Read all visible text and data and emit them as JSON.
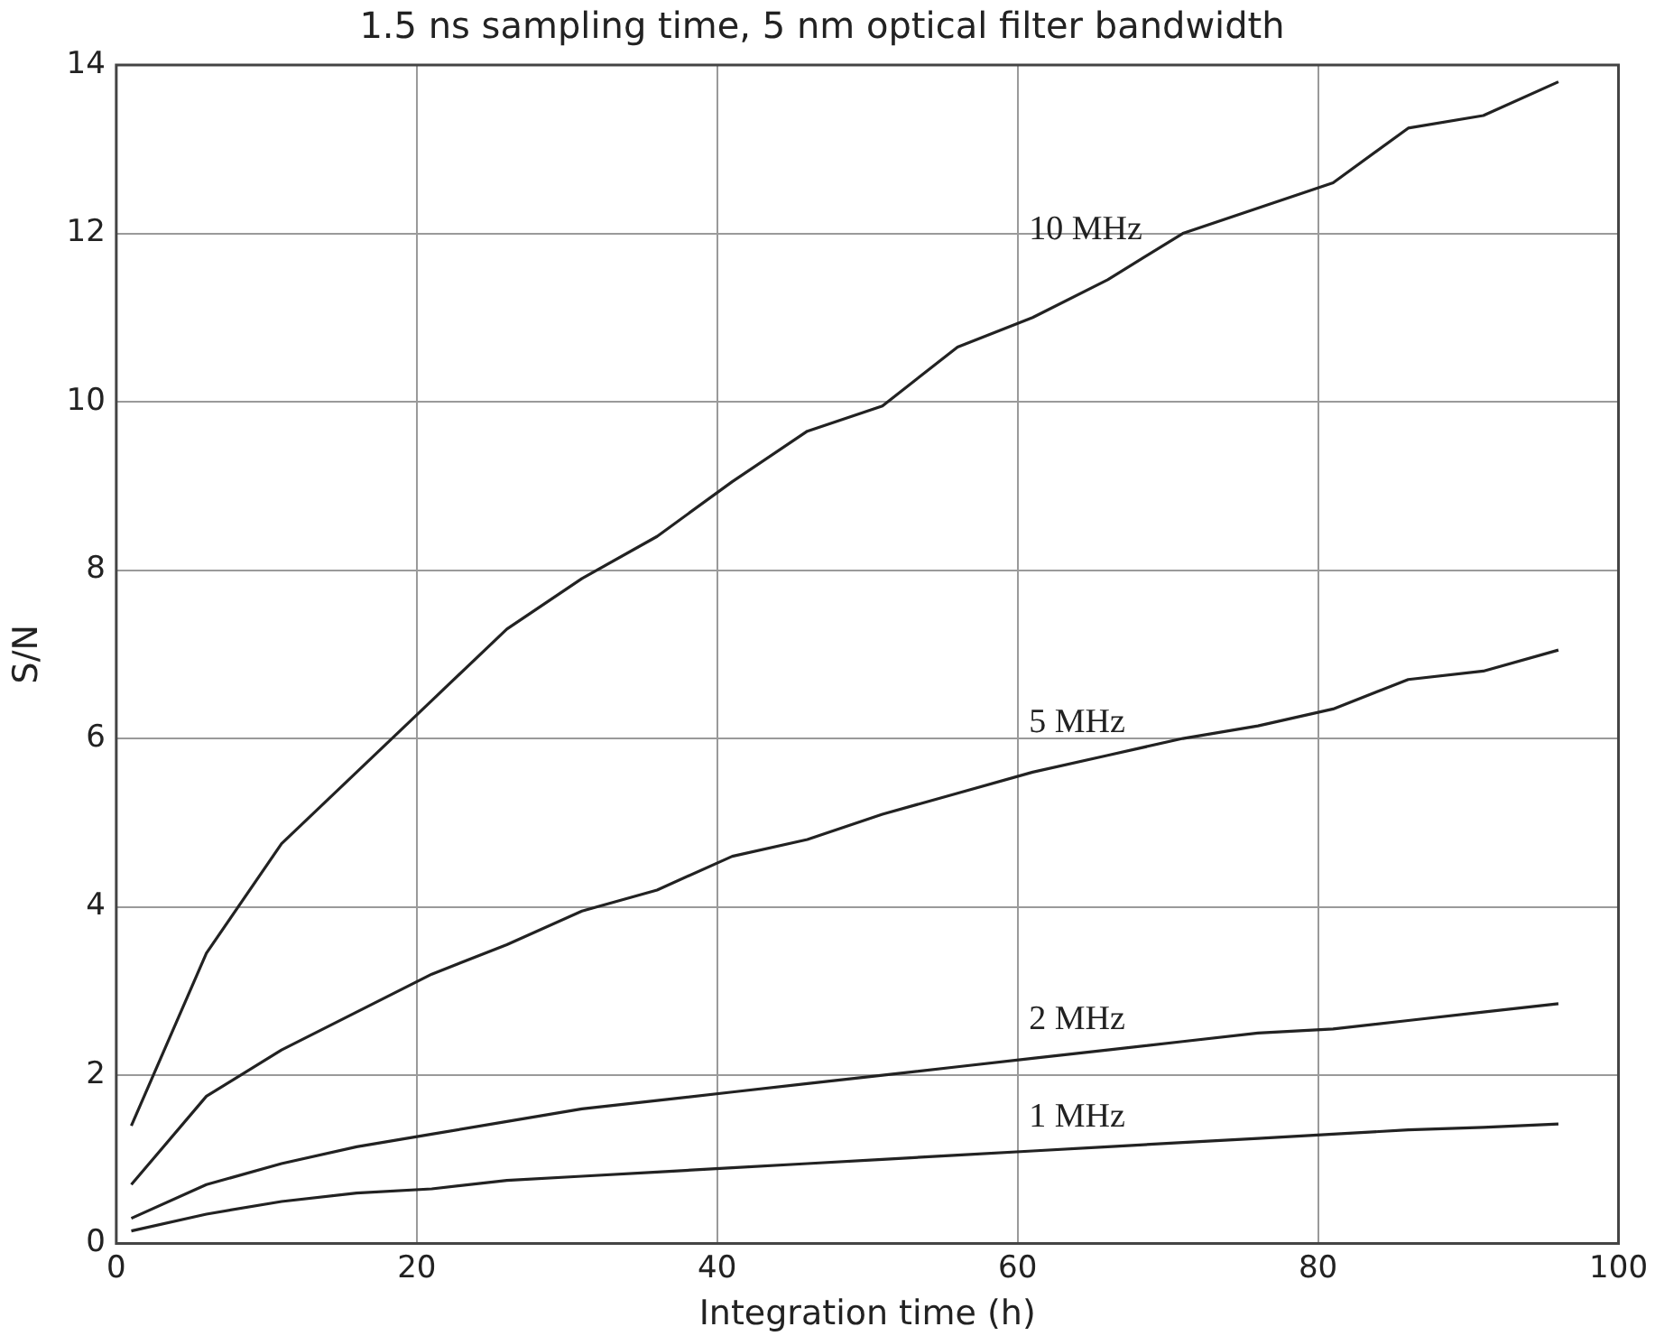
{
  "chart_data": {
    "type": "line",
    "title": "1.5 ns sampling time, 5 nm optical filter bandwidth",
    "xlabel": "Integration time (h)",
    "ylabel": "S/N",
    "x": [
      1,
      6,
      11,
      16,
      21,
      26,
      31,
      36,
      41,
      46,
      51,
      56,
      61,
      66,
      71,
      76,
      81,
      86,
      91,
      96
    ],
    "series": [
      {
        "name": "10 MHz",
        "color": "#222222",
        "values": [
          1.4,
          3.45,
          4.75,
          5.6,
          6.45,
          7.3,
          7.9,
          8.4,
          9.05,
          9.65,
          9.95,
          10.65,
          11.0,
          11.45,
          12.0,
          12.3,
          12.6,
          13.25,
          13.4,
          13.8
        ]
      },
      {
        "name": "5 MHz",
        "color": "#222222",
        "values": [
          0.7,
          1.75,
          2.3,
          2.75,
          3.2,
          3.55,
          3.95,
          4.2,
          4.6,
          4.8,
          5.1,
          5.35,
          5.6,
          5.8,
          6.0,
          6.15,
          6.35,
          6.7,
          6.8,
          7.05
        ]
      },
      {
        "name": "2 MHz",
        "color": "#222222",
        "values": [
          0.3,
          0.7,
          0.95,
          1.15,
          1.3,
          1.45,
          1.6,
          1.7,
          1.8,
          1.9,
          2.0,
          2.1,
          2.2,
          2.3,
          2.4,
          2.5,
          2.55,
          2.65,
          2.75,
          2.85
        ]
      },
      {
        "name": "1 MHz",
        "color": "#222222",
        "values": [
          0.15,
          0.35,
          0.5,
          0.6,
          0.65,
          0.75,
          0.8,
          0.85,
          0.9,
          0.95,
          1.0,
          1.05,
          1.1,
          1.15,
          1.2,
          1.25,
          1.3,
          1.35,
          1.38,
          1.42
        ]
      }
    ],
    "xlim": [
      0,
      100
    ],
    "xticks": [
      0,
      20,
      40,
      60,
      80,
      100
    ],
    "ylim": [
      0,
      14
    ],
    "yticks": [
      0,
      2,
      4,
      6,
      8,
      10,
      12,
      14
    ],
    "grid": true,
    "legend": false,
    "marker": "none",
    "line_style": "solid"
  }
}
